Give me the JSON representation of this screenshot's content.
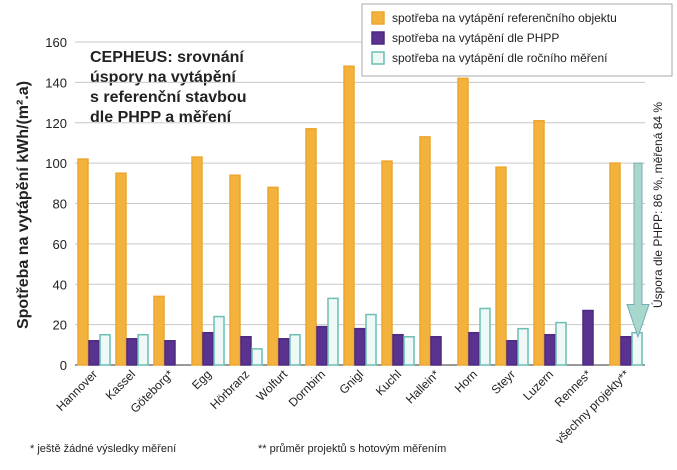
{
  "chart_data": {
    "type": "bar",
    "title": [
      "CEPHEUS: srovnání",
      "úspory na vytápění",
      "s referenční stavbou",
      "dle PHPP a měření"
    ],
    "y_label": "Spotřeba na vytápění kWh/(m².a)",
    "annotation": "Úspora dle PHPP: 86 %, měřená 84 %",
    "footnotes": [
      "* ještě žádné výsledky měření",
      "** průměr projektů s hotovým měřením"
    ],
    "categories": [
      "Hannover",
      "Kassel",
      "Göteborg*",
      "Egg",
      "Hörbranz",
      "Wolfurt",
      "Dornbirn",
      "Gnigl",
      "Kuchl",
      "Hallein*",
      "Horn",
      "Steyr",
      "Luzern",
      "Rennes*",
      "všechny projekty**"
    ],
    "series": [
      {
        "name": "spotřeba na vytápění referenčního objektu",
        "color": "#eea52e",
        "fill": "#f2b23c",
        "values": [
          102,
          95,
          34,
          103,
          94,
          88,
          117,
          148,
          101,
          113,
          142,
          98,
          121,
          null,
          100
        ]
      },
      {
        "name": "spotřeba na vytápění dle PHPP",
        "color": "#4b2a7f",
        "fill": "#5a3290",
        "values": [
          12,
          13,
          12,
          16,
          14,
          13,
          19,
          18,
          15,
          14,
          16,
          12,
          15,
          27,
          14
        ]
      },
      {
        "name": "spotřeba na vytápění dle ročního měření",
        "color": "#6cbfb2",
        "fill": "#eef8f6",
        "values": [
          15,
          15,
          null,
          24,
          8,
          15,
          33,
          25,
          14,
          null,
          28,
          18,
          21,
          null,
          16
        ]
      }
    ],
    "ylim": [
      0,
      160
    ],
    "yticks": [
      0,
      20,
      40,
      60,
      80,
      100,
      120,
      140,
      160
    ],
    "grid": true
  }
}
